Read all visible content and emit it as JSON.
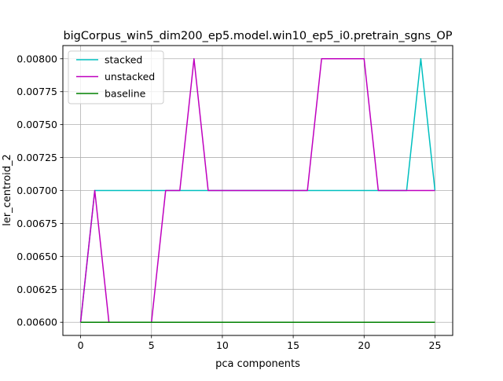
{
  "chart_data": {
    "type": "line",
    "title": "bigCorpus_win5_dim200_ep5.model.win10_ep5_i0.pretrain_sgns_OP",
    "xlabel": "pca components",
    "ylabel": "ler_centroid_2",
    "xlim": [
      -1.25,
      26.25
    ],
    "ylim": [
      0.0059,
      0.0081
    ],
    "xticks": [
      0,
      5,
      10,
      15,
      20,
      25
    ],
    "xtick_labels": [
      "0",
      "5",
      "10",
      "15",
      "20",
      "25"
    ],
    "yticks": [
      0.006,
      0.00625,
      0.0065,
      0.00675,
      0.007,
      0.00725,
      0.0075,
      0.00775,
      0.008
    ],
    "ytick_labels": [
      "0.00600",
      "0.00625",
      "0.00650",
      "0.00675",
      "0.00700",
      "0.00725",
      "0.00750",
      "0.00775",
      "0.00800"
    ],
    "grid": true,
    "legend_position": "top-left",
    "x": [
      0,
      1,
      2,
      3,
      4,
      5,
      6,
      7,
      8,
      9,
      10,
      11,
      12,
      13,
      14,
      15,
      16,
      17,
      18,
      19,
      20,
      21,
      22,
      23,
      24,
      25
    ],
    "series": [
      {
        "name": "stacked",
        "color": "#00bfbf",
        "values": [
          0.006,
          0.007,
          0.007,
          0.007,
          0.007,
          0.007,
          0.007,
          0.007,
          0.007,
          0.007,
          0.007,
          0.007,
          0.007,
          0.007,
          0.007,
          0.007,
          0.007,
          0.007,
          0.007,
          0.007,
          0.007,
          0.007,
          0.007,
          0.007,
          0.008,
          0.007
        ]
      },
      {
        "name": "unstacked",
        "color": "#bf00bf",
        "values": [
          0.006,
          0.007,
          0.006,
          0.006,
          0.006,
          0.006,
          0.007,
          0.007,
          0.008,
          0.007,
          0.007,
          0.007,
          0.007,
          0.007,
          0.007,
          0.007,
          0.007,
          0.008,
          0.008,
          0.008,
          0.008,
          0.007,
          0.007,
          0.007,
          0.007,
          0.007
        ]
      },
      {
        "name": "baseline",
        "color": "#008000",
        "values": [
          0.006,
          0.006,
          0.006,
          0.006,
          0.006,
          0.006,
          0.006,
          0.006,
          0.006,
          0.006,
          0.006,
          0.006,
          0.006,
          0.006,
          0.006,
          0.006,
          0.006,
          0.006,
          0.006,
          0.006,
          0.006,
          0.006,
          0.006,
          0.006,
          0.006,
          0.006
        ]
      }
    ]
  }
}
